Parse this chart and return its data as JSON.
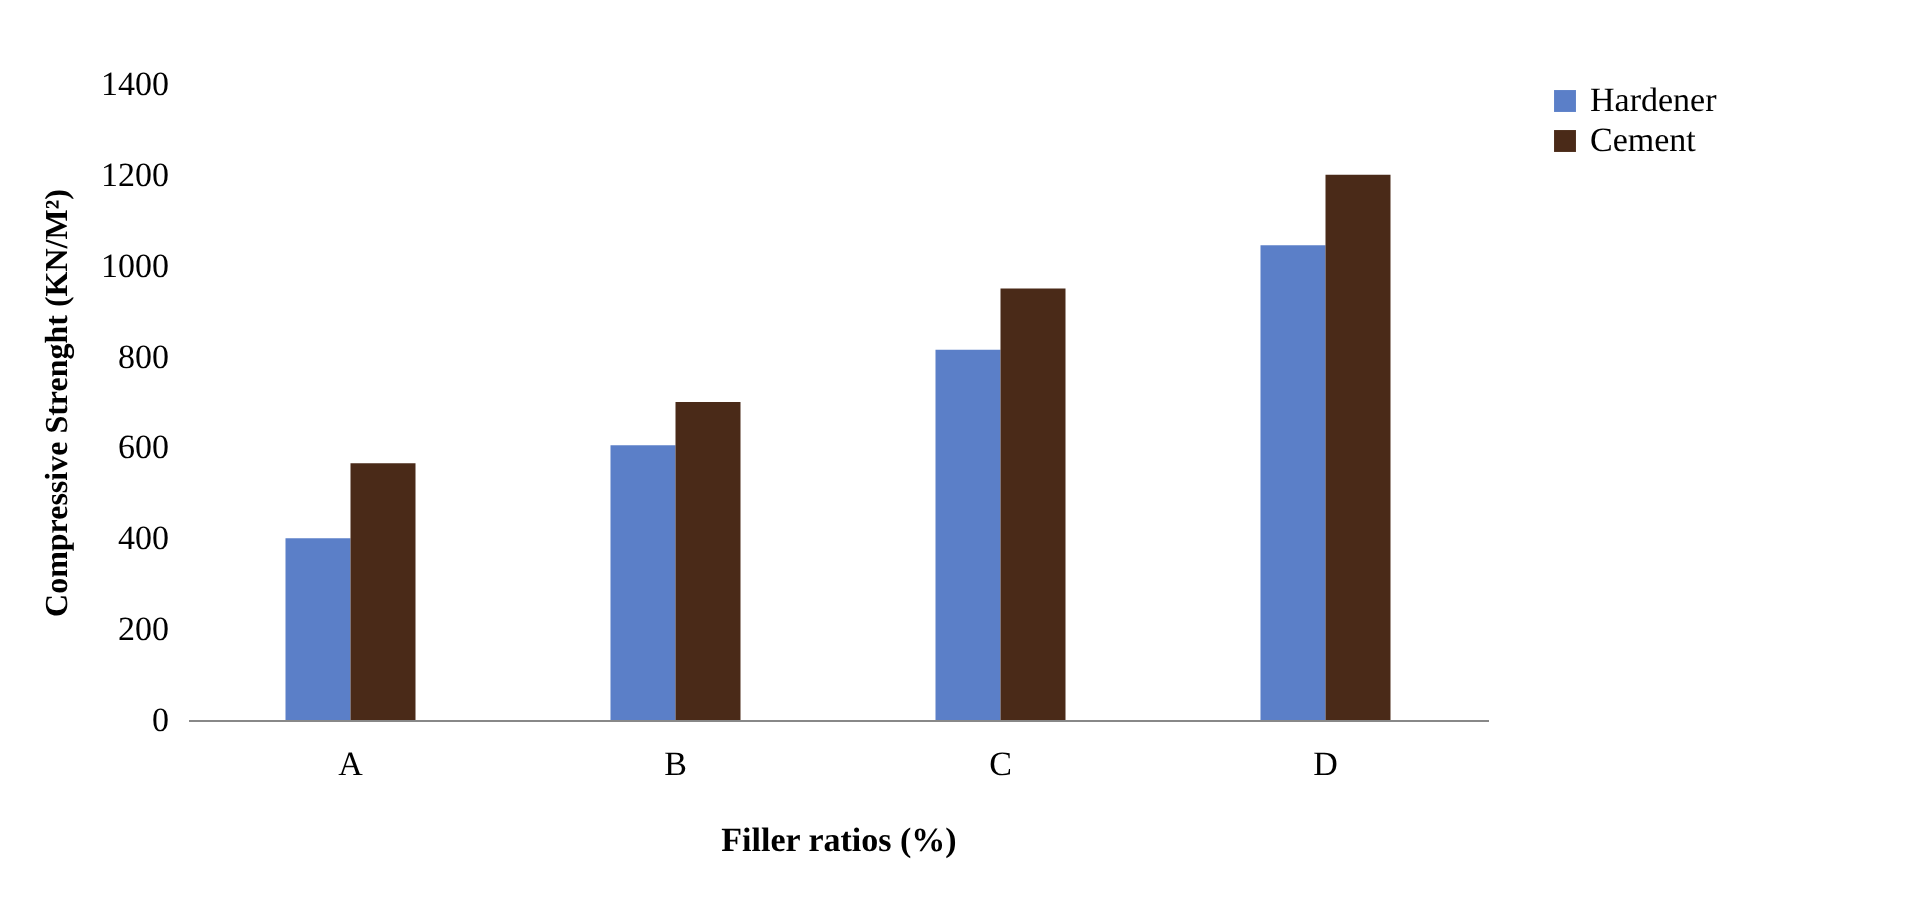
{
  "chart_data": {
    "type": "bar",
    "xlabel": "Filler ratios (%)",
    "ylabel": "Compressive Strenght (KN/M²)",
    "categories": [
      "A",
      "B",
      "C",
      "D"
    ],
    "series": [
      {
        "name": "Hardener",
        "color": "#5b7fc8",
        "values": [
          400,
          605,
          815,
          1045
        ]
      },
      {
        "name": "Cement",
        "color": "#4a2a18",
        "values": [
          565,
          700,
          950,
          1200
        ]
      }
    ],
    "ylim": [
      0,
      1400
    ],
    "yticks": [
      0,
      200,
      400,
      600,
      800,
      1000,
      1200,
      1400
    ],
    "grid": false,
    "legend": "right"
  }
}
